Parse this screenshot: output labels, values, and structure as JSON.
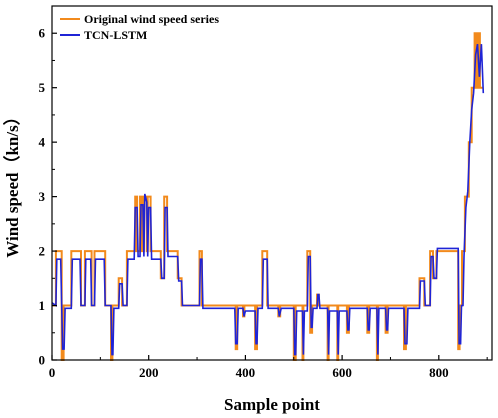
{
  "chart_data": {
    "type": "line",
    "title": "",
    "xlabel": "Sample point",
    "ylabel": "Wind speed（kn/s）",
    "xlim": [
      0,
      910
    ],
    "ylim": [
      0,
      6.5
    ],
    "x_ticks": [
      0,
      200,
      400,
      600,
      800
    ],
    "y_ticks": [
      0,
      1,
      2,
      3,
      4,
      5,
      6
    ],
    "grid": false,
    "legend_position": "top-left",
    "series": [
      {
        "name": "Original wind speed series",
        "color": "#f28a1c",
        "points": [
          [
            0,
            1
          ],
          [
            8,
            1
          ],
          [
            8,
            2
          ],
          [
            20,
            2
          ],
          [
            20,
            0
          ],
          [
            24,
            0
          ],
          [
            24,
            1
          ],
          [
            40,
            1
          ],
          [
            40,
            2
          ],
          [
            60,
            2
          ],
          [
            60,
            1
          ],
          [
            68,
            1
          ],
          [
            68,
            2
          ],
          [
            82,
            2
          ],
          [
            82,
            1
          ],
          [
            88,
            1
          ],
          [
            88,
            2
          ],
          [
            110,
            2
          ],
          [
            110,
            1
          ],
          [
            122,
            1
          ],
          [
            122,
            0
          ],
          [
            125,
            0
          ],
          [
            125,
            1
          ],
          [
            138,
            1
          ],
          [
            138,
            1.5
          ],
          [
            145,
            1.5
          ],
          [
            145,
            1
          ],
          [
            155,
            1
          ],
          [
            155,
            2
          ],
          [
            172,
            2
          ],
          [
            172,
            3
          ],
          [
            176,
            3
          ],
          [
            176,
            2
          ],
          [
            182,
            2
          ],
          [
            182,
            3
          ],
          [
            186,
            3
          ],
          [
            186,
            2
          ],
          [
            190,
            2
          ],
          [
            190,
            3
          ],
          [
            196,
            3
          ],
          [
            196,
            2
          ],
          [
            198,
            2
          ],
          [
            198,
            3
          ],
          [
            204,
            3
          ],
          [
            204,
            2
          ],
          [
            225,
            2
          ],
          [
            225,
            1.5
          ],
          [
            232,
            1.5
          ],
          [
            232,
            3
          ],
          [
            238,
            3
          ],
          [
            238,
            2
          ],
          [
            260,
            2
          ],
          [
            260,
            1.5
          ],
          [
            268,
            1.5
          ],
          [
            268,
            1
          ],
          [
            305,
            1
          ],
          [
            305,
            2
          ],
          [
            310,
            2
          ],
          [
            310,
            1
          ],
          [
            380,
            1
          ],
          [
            380,
            0.2
          ],
          [
            383,
            0.2
          ],
          [
            383,
            1
          ],
          [
            395,
            1
          ],
          [
            395,
            0.8
          ],
          [
            398,
            0.8
          ],
          [
            398,
            1
          ],
          [
            420,
            1
          ],
          [
            420,
            0.2
          ],
          [
            424,
            0.2
          ],
          [
            424,
            1
          ],
          [
            435,
            1
          ],
          [
            435,
            2
          ],
          [
            445,
            2
          ],
          [
            445,
            1
          ],
          [
            468,
            1
          ],
          [
            468,
            0.8
          ],
          [
            472,
            0.8
          ],
          [
            472,
            1
          ],
          [
            500,
            1
          ],
          [
            500,
            0
          ],
          [
            504,
            0
          ],
          [
            504,
            1
          ],
          [
            518,
            1
          ],
          [
            518,
            0
          ],
          [
            520,
            0
          ],
          [
            520,
            1
          ],
          [
            528,
            1
          ],
          [
            528,
            2
          ],
          [
            534,
            2
          ],
          [
            534,
            0.5
          ],
          [
            538,
            0.5
          ],
          [
            538,
            1
          ],
          [
            548,
            1
          ],
          [
            548,
            1.2
          ],
          [
            552,
            1.2
          ],
          [
            552,
            1
          ],
          [
            570,
            1
          ],
          [
            570,
            0
          ],
          [
            572,
            0
          ],
          [
            572,
            1
          ],
          [
            590,
            1
          ],
          [
            590,
            0
          ],
          [
            592,
            0
          ],
          [
            592,
            1
          ],
          [
            610,
            1
          ],
          [
            610,
            0.5
          ],
          [
            614,
            0.5
          ],
          [
            614,
            1
          ],
          [
            632,
            1
          ],
          [
            632,
            1
          ],
          [
            652,
            1
          ],
          [
            652,
            0.5
          ],
          [
            656,
            0.5
          ],
          [
            656,
            1
          ],
          [
            672,
            1
          ],
          [
            672,
            0
          ],
          [
            674,
            0
          ],
          [
            674,
            1
          ],
          [
            690,
            1
          ],
          [
            690,
            0.5
          ],
          [
            694,
            0.5
          ],
          [
            694,
            1
          ],
          [
            728,
            1
          ],
          [
            728,
            0.2
          ],
          [
            732,
            0.2
          ],
          [
            732,
            1
          ],
          [
            760,
            1
          ],
          [
            760,
            1.5
          ],
          [
            770,
            1.5
          ],
          [
            770,
            1
          ],
          [
            782,
            1
          ],
          [
            782,
            2
          ],
          [
            788,
            2
          ],
          [
            788,
            1.5
          ],
          [
            795,
            1.5
          ],
          [
            795,
            2
          ],
          [
            840,
            2
          ],
          [
            840,
            0.2
          ],
          [
            843,
            0.2
          ],
          [
            843,
            1
          ],
          [
            848,
            1
          ],
          [
            848,
            2
          ],
          [
            854,
            2
          ],
          [
            854,
            3
          ],
          [
            862,
            3
          ],
          [
            862,
            4
          ],
          [
            868,
            4
          ],
          [
            868,
            5
          ],
          [
            874,
            5
          ],
          [
            874,
            6
          ],
          [
            878,
            6
          ],
          [
            878,
            5
          ],
          [
            882,
            5
          ],
          [
            882,
            6
          ],
          [
            885,
            6
          ],
          [
            885,
            5
          ],
          [
            892,
            5
          ]
        ]
      },
      {
        "name": "TCN-LSTM",
        "color": "#1f24d6",
        "points": [
          [
            0,
            1.05
          ],
          [
            8,
            1.0
          ],
          [
            10,
            1.85
          ],
          [
            18,
            1.85
          ],
          [
            22,
            0.2
          ],
          [
            25,
            0.2
          ],
          [
            27,
            0.95
          ],
          [
            40,
            0.95
          ],
          [
            42,
            1.85
          ],
          [
            58,
            1.85
          ],
          [
            60,
            1.0
          ],
          [
            68,
            1.0
          ],
          [
            70,
            1.85
          ],
          [
            80,
            1.85
          ],
          [
            82,
            1.0
          ],
          [
            88,
            1.0
          ],
          [
            90,
            1.85
          ],
          [
            108,
            1.85
          ],
          [
            110,
            1.0
          ],
          [
            122,
            1.0
          ],
          [
            124,
            0.1
          ],
          [
            126,
            0.1
          ],
          [
            128,
            0.95
          ],
          [
            138,
            0.95
          ],
          [
            140,
            1.4
          ],
          [
            145,
            1.4
          ],
          [
            147,
            1.0
          ],
          [
            155,
            1.0
          ],
          [
            157,
            1.85
          ],
          [
            170,
            1.85
          ],
          [
            172,
            2.8
          ],
          [
            176,
            2.8
          ],
          [
            178,
            1.9
          ],
          [
            182,
            1.9
          ],
          [
            184,
            2.85
          ],
          [
            188,
            2.85
          ],
          [
            190,
            1.9
          ],
          [
            192,
            3.05
          ],
          [
            196,
            2.9
          ],
          [
            198,
            1.9
          ],
          [
            200,
            2.8
          ],
          [
            204,
            2.8
          ],
          [
            206,
            1.85
          ],
          [
            225,
            1.85
          ],
          [
            227,
            1.5
          ],
          [
            232,
            1.5
          ],
          [
            234,
            2.8
          ],
          [
            238,
            2.8
          ],
          [
            240,
            1.9
          ],
          [
            260,
            1.9
          ],
          [
            262,
            1.45
          ],
          [
            268,
            1.45
          ],
          [
            270,
            1.0
          ],
          [
            305,
            1.0
          ],
          [
            307,
            1.85
          ],
          [
            310,
            1.85
          ],
          [
            312,
            0.95
          ],
          [
            378,
            0.95
          ],
          [
            380,
            0.3
          ],
          [
            383,
            0.3
          ],
          [
            385,
            0.95
          ],
          [
            395,
            0.95
          ],
          [
            397,
            0.8
          ],
          [
            400,
            0.9
          ],
          [
            420,
            0.9
          ],
          [
            422,
            0.3
          ],
          [
            424,
            0.3
          ],
          [
            426,
            0.95
          ],
          [
            435,
            0.95
          ],
          [
            437,
            1.85
          ],
          [
            445,
            1.85
          ],
          [
            447,
            0.95
          ],
          [
            468,
            0.95
          ],
          [
            470,
            0.8
          ],
          [
            474,
            0.95
          ],
          [
            500,
            0.95
          ],
          [
            502,
            0.1
          ],
          [
            504,
            0.1
          ],
          [
            506,
            0.9
          ],
          [
            518,
            0.9
          ],
          [
            520,
            0.1
          ],
          [
            522,
            0.9
          ],
          [
            528,
            0.9
          ],
          [
            530,
            1.9
          ],
          [
            534,
            1.9
          ],
          [
            536,
            0.6
          ],
          [
            538,
            0.6
          ],
          [
            540,
            0.95
          ],
          [
            548,
            0.95
          ],
          [
            550,
            1.2
          ],
          [
            552,
            1.2
          ],
          [
            554,
            0.95
          ],
          [
            570,
            0.95
          ],
          [
            572,
            0.1
          ],
          [
            574,
            0.9
          ],
          [
            590,
            0.9
          ],
          [
            592,
            0.1
          ],
          [
            594,
            0.9
          ],
          [
            610,
            0.9
          ],
          [
            612,
            0.55
          ],
          [
            614,
            0.55
          ],
          [
            616,
            0.95
          ],
          [
            652,
            0.95
          ],
          [
            654,
            0.55
          ],
          [
            656,
            0.55
          ],
          [
            658,
            0.95
          ],
          [
            672,
            0.95
          ],
          [
            674,
            0.1
          ],
          [
            676,
            0.95
          ],
          [
            690,
            0.95
          ],
          [
            692,
            0.55
          ],
          [
            694,
            0.55
          ],
          [
            696,
            0.95
          ],
          [
            728,
            0.95
          ],
          [
            730,
            0.3
          ],
          [
            734,
            0.3
          ],
          [
            736,
            0.95
          ],
          [
            760,
            0.95
          ],
          [
            762,
            1.45
          ],
          [
            770,
            1.45
          ],
          [
            772,
            1.0
          ],
          [
            782,
            1.0
          ],
          [
            784,
            1.9
          ],
          [
            788,
            1.9
          ],
          [
            790,
            1.5
          ],
          [
            795,
            1.5
          ],
          [
            797,
            2.05
          ],
          [
            840,
            2.05
          ],
          [
            842,
            0.3
          ],
          [
            845,
            0.3
          ],
          [
            847,
            1.0
          ],
          [
            850,
            1.0
          ],
          [
            852,
            1.9
          ],
          [
            856,
            2.8
          ],
          [
            860,
            3.1
          ],
          [
            864,
            4.0
          ],
          [
            868,
            4.6
          ],
          [
            872,
            4.9
          ],
          [
            876,
            5.6
          ],
          [
            880,
            5.8
          ],
          [
            884,
            5.2
          ],
          [
            888,
            5.8
          ],
          [
            892,
            4.9
          ]
        ]
      }
    ]
  }
}
